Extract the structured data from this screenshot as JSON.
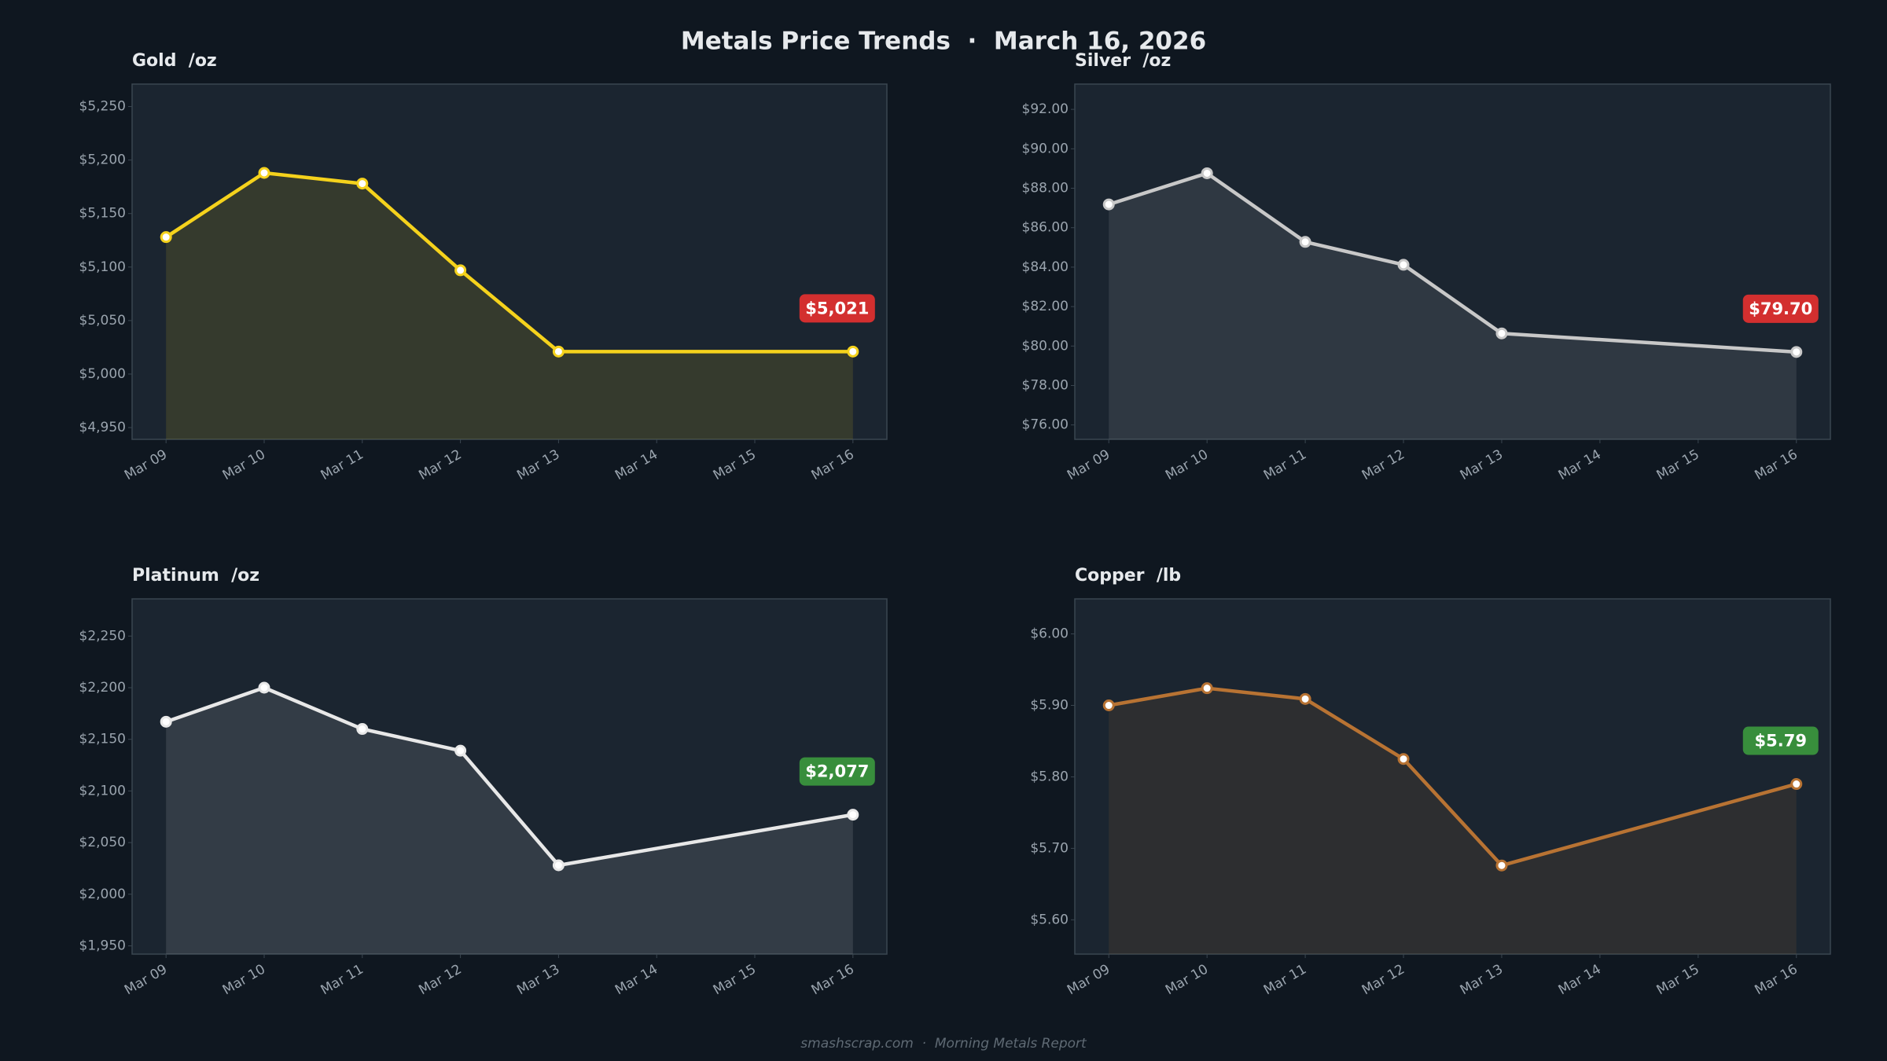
{
  "title": "Metals Price Trends  ·  March 16, 2026",
  "footer": "smashscrap.com  ·  Morning Metals Report",
  "chart_data": [
    {
      "type": "line",
      "title": "Gold  /oz",
      "color": "#f5d21c",
      "label_color": "#d32f2f",
      "x": [
        "Mar 09",
        "Mar 10",
        "Mar 11",
        "Mar 12",
        "Mar 13",
        "Mar 16"
      ],
      "values": [
        5128,
        5188,
        5178,
        5097,
        5021,
        5021
      ],
      "value_labels": [
        null,
        null,
        null,
        null,
        null,
        "$5,021"
      ],
      "xticks": [
        "Mar 09",
        "Mar 10",
        "Mar 11",
        "Mar 12",
        "Mar 13",
        "Mar 14",
        "Mar 15",
        "Mar 16"
      ],
      "ylim": [
        4939,
        5271
      ],
      "yticks": [
        {
          "value": 4950,
          "label": "$4,950"
        },
        {
          "value": 5000,
          "label": "$5,000"
        },
        {
          "value": 5050,
          "label": "$5,050"
        },
        {
          "value": 5100,
          "label": "$5,100"
        },
        {
          "value": 5150,
          "label": "$5,150"
        },
        {
          "value": 5200,
          "label": "$5,200"
        },
        {
          "value": 5250,
          "label": "$5,250"
        }
      ]
    },
    {
      "type": "line",
      "title": "Silver  /oz",
      "color": "#c8c8c8",
      "label_color": "#d32f2f",
      "x": [
        "Mar 09",
        "Mar 10",
        "Mar 11",
        "Mar 12",
        "Mar 13",
        "Mar 16"
      ],
      "values": [
        87.18,
        88.76,
        85.28,
        84.12,
        80.64,
        79.7
      ],
      "value_labels": [
        null,
        null,
        null,
        null,
        null,
        "$79.70"
      ],
      "xticks": [
        "Mar 09",
        "Mar 10",
        "Mar 11",
        "Mar 12",
        "Mar 13",
        "Mar 14",
        "Mar 15",
        "Mar 16"
      ],
      "ylim": [
        75.27,
        93.28
      ],
      "yticks": [
        {
          "value": 76,
          "label": "$76.00"
        },
        {
          "value": 78,
          "label": "$78.00"
        },
        {
          "value": 80,
          "label": "$80.00"
        },
        {
          "value": 82,
          "label": "$82.00"
        },
        {
          "value": 84,
          "label": "$84.00"
        },
        {
          "value": 86,
          "label": "$86.00"
        },
        {
          "value": 88,
          "label": "$88.00"
        },
        {
          "value": 90,
          "label": "$90.00"
        },
        {
          "value": 92,
          "label": "$92.00"
        }
      ]
    },
    {
      "type": "line",
      "title": "Platinum  /oz",
      "color": "#e8e8e8",
      "label_color": "#388e3c",
      "x": [
        "Mar 09",
        "Mar 10",
        "Mar 11",
        "Mar 12",
        "Mar 13",
        "Mar 16"
      ],
      "values": [
        2167,
        2200,
        2160,
        2139,
        2028,
        2077
      ],
      "value_labels": [
        null,
        null,
        null,
        null,
        null,
        "$2,077"
      ],
      "xticks": [
        "Mar 09",
        "Mar 10",
        "Mar 11",
        "Mar 12",
        "Mar 13",
        "Mar 14",
        "Mar 15",
        "Mar 16"
      ],
      "ylim": [
        1942,
        2286
      ],
      "yticks": [
        {
          "value": 1950,
          "label": "$1,950"
        },
        {
          "value": 2000,
          "label": "$2,000"
        },
        {
          "value": 2050,
          "label": "$2,050"
        },
        {
          "value": 2100,
          "label": "$2,100"
        },
        {
          "value": 2150,
          "label": "$2,150"
        },
        {
          "value": 2200,
          "label": "$2,200"
        },
        {
          "value": 2250,
          "label": "$2,250"
        }
      ]
    },
    {
      "type": "line",
      "title": "Copper  /lb",
      "color": "#b87333",
      "label_color": "#388e3c",
      "x": [
        "Mar 09",
        "Mar 10",
        "Mar 11",
        "Mar 12",
        "Mar 13",
        "Mar 16"
      ],
      "values": [
        5.9,
        5.924,
        5.909,
        5.825,
        5.676,
        5.79
      ],
      "value_labels": [
        null,
        null,
        null,
        null,
        null,
        "$5.79"
      ],
      "xticks": [
        "Mar 09",
        "Mar 10",
        "Mar 11",
        "Mar 12",
        "Mar 13",
        "Mar 14",
        "Mar 15",
        "Mar 16"
      ],
      "ylim": [
        5.552,
        6.049
      ],
      "yticks": [
        {
          "value": 5.6,
          "label": "$5.60"
        },
        {
          "value": 5.7,
          "label": "$5.70"
        },
        {
          "value": 5.8,
          "label": "$5.80"
        },
        {
          "value": 5.9,
          "label": "$5.90"
        },
        {
          "value": 6.0,
          "label": "$6.00"
        }
      ]
    }
  ]
}
